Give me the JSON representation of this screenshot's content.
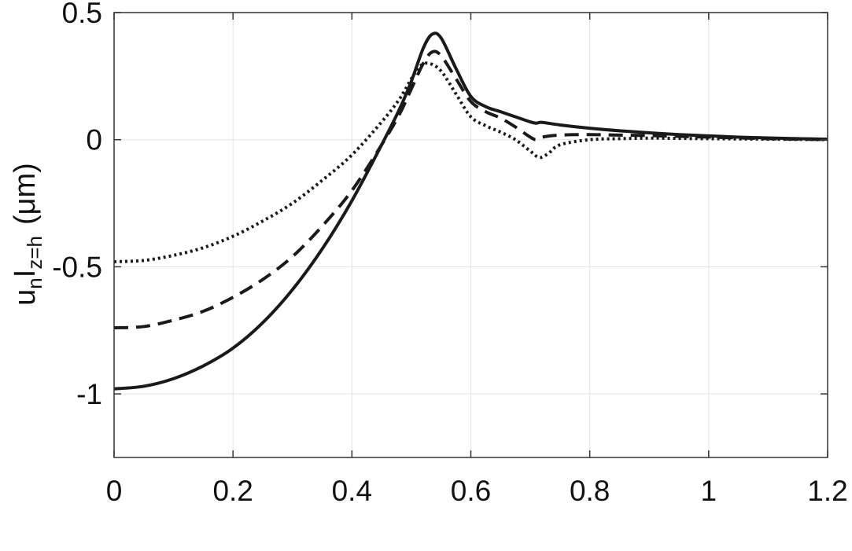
{
  "chart_data": {
    "type": "line",
    "title": "",
    "xlabel": "",
    "ylabel": {
      "base": "u",
      "sub1": "n",
      "bar": "I",
      "sub2": "z=h",
      "units": "(μm)"
    },
    "xlim": [
      0,
      1.2
    ],
    "ylim": [
      -1.25,
      0.5
    ],
    "grid": true,
    "legend": "none",
    "x_ticks": [
      0,
      0.2,
      0.4,
      0.6,
      0.8,
      1,
      1.2
    ],
    "x_tick_labels": [
      "0",
      "0.2",
      "0.4",
      "0.6",
      "0.8",
      "1",
      "1.2"
    ],
    "y_ticks": [
      -1,
      -0.5,
      0,
      0.5
    ],
    "y_tick_labels": [
      "-1",
      "-0.5",
      "0",
      "0.5"
    ],
    "series": [
      {
        "style": "solid",
        "x": [
          0,
          0.05,
          0.1,
          0.15,
          0.2,
          0.25,
          0.3,
          0.35,
          0.4,
          0.45,
          0.48,
          0.5,
          0.52,
          0.535,
          0.55,
          0.575,
          0.6,
          0.625,
          0.65,
          0.675,
          0.7,
          0.71,
          0.72,
          0.75,
          0.8,
          0.85,
          0.9,
          0.95,
          1.0,
          1.05,
          1.1,
          1.15,
          1.2
        ],
        "y": [
          -0.98,
          -0.97,
          -0.94,
          -0.89,
          -0.82,
          -0.72,
          -0.59,
          -0.43,
          -0.24,
          -0.02,
          0.12,
          0.23,
          0.36,
          0.415,
          0.4,
          0.28,
          0.17,
          0.13,
          0.11,
          0.09,
          0.07,
          0.065,
          0.068,
          0.058,
          0.045,
          0.035,
          0.027,
          0.02,
          0.015,
          0.01,
          0.007,
          0.004,
          0.002
        ]
      },
      {
        "style": "dashed",
        "x": [
          0,
          0.05,
          0.1,
          0.15,
          0.2,
          0.25,
          0.3,
          0.35,
          0.4,
          0.45,
          0.48,
          0.5,
          0.52,
          0.535,
          0.55,
          0.575,
          0.6,
          0.625,
          0.65,
          0.675,
          0.7,
          0.71,
          0.72,
          0.75,
          0.8,
          0.85,
          0.9,
          0.95,
          1.0,
          1.05,
          1.1,
          1.15,
          1.2
        ],
        "y": [
          -0.74,
          -0.735,
          -0.71,
          -0.675,
          -0.62,
          -0.55,
          -0.46,
          -0.34,
          -0.2,
          -0.02,
          0.1,
          0.2,
          0.3,
          0.345,
          0.33,
          0.24,
          0.15,
          0.11,
          0.085,
          0.05,
          0.01,
          0.0,
          0.01,
          0.018,
          0.02,
          0.018,
          0.016,
          0.013,
          0.01,
          0.007,
          0.004,
          0.002,
          0.001
        ]
      },
      {
        "style": "dotted",
        "x": [
          0,
          0.05,
          0.1,
          0.15,
          0.2,
          0.25,
          0.3,
          0.35,
          0.4,
          0.45,
          0.48,
          0.5,
          0.515,
          0.53,
          0.55,
          0.575,
          0.6,
          0.625,
          0.65,
          0.675,
          0.7,
          0.715,
          0.73,
          0.75,
          0.8,
          0.85,
          0.9,
          0.95,
          1.0,
          1.05,
          1.1,
          1.15,
          1.2
        ],
        "y": [
          -0.48,
          -0.475,
          -0.455,
          -0.425,
          -0.38,
          -0.32,
          -0.25,
          -0.16,
          -0.06,
          0.07,
          0.16,
          0.24,
          0.29,
          0.3,
          0.27,
          0.18,
          0.09,
          0.055,
          0.03,
          0.0,
          -0.045,
          -0.07,
          -0.055,
          -0.02,
          0.0,
          0.004,
          0.006,
          0.005,
          0.004,
          0.003,
          0.002,
          0.001,
          0.0
        ]
      }
    ]
  }
}
